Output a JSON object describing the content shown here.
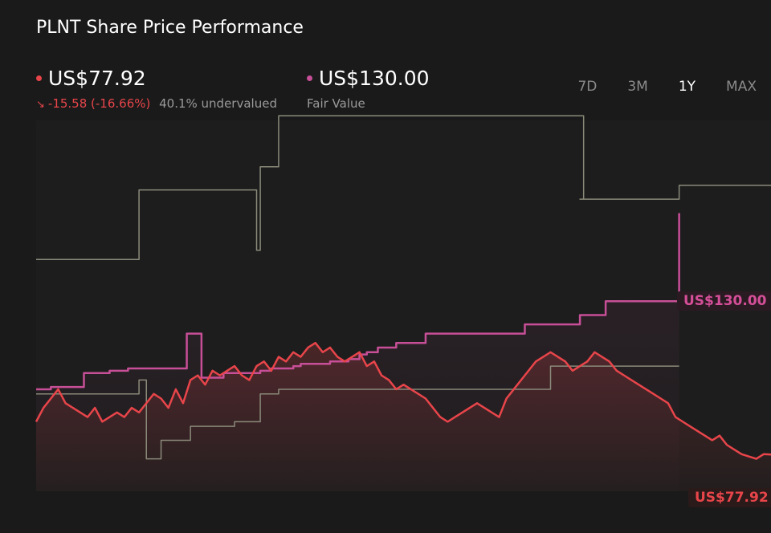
{
  "title": "PLNT Share Price Performance",
  "price": {
    "value": "US$77.92",
    "change": "-15.58 (-16.66%)",
    "valuation": "40.1% undervalued",
    "color": "#e8454a"
  },
  "fair_value": {
    "value": "US$130.00",
    "label": "Fair Value",
    "color": "#c74f97"
  },
  "ranges": [
    "7D",
    "3M",
    "1Y",
    "MAX"
  ],
  "active_range": "1Y",
  "end_labels": {
    "fair_value": "US$130.00",
    "price": "US$77.92"
  },
  "chart_data": {
    "type": "line",
    "xlim": [
      0,
      200
    ],
    "ylim": [
      70,
      150
    ],
    "series": [
      {
        "name": "Fair Value",
        "color": "#c74f97",
        "step": true,
        "x": [
          0,
          4,
          12,
          13,
          17,
          20,
          25,
          40,
          41,
          44,
          45,
          49,
          51,
          61,
          64,
          70,
          72,
          80,
          85,
          88,
          90,
          93,
          98,
          106,
          116,
          133,
          138,
          148,
          150,
          155,
          165,
          175
        ],
        "y": [
          92,
          92.5,
          92.5,
          95.5,
          95.5,
          96,
          96.5,
          96.5,
          104,
          104,
          94.5,
          94.5,
          95.5,
          96,
          96.5,
          97,
          97.5,
          98,
          98.5,
          99.5,
          100,
          101,
          102,
          104,
          104,
          106,
          106,
          108,
          108,
          111,
          111,
          130
        ]
      },
      {
        "name": "Price",
        "color": "#e8454a",
        "x": [
          0,
          2,
          4,
          6,
          8,
          10,
          12,
          14,
          16,
          18,
          20,
          22,
          24,
          26,
          28,
          30,
          32,
          34,
          36,
          38,
          40,
          42,
          44,
          46,
          48,
          50,
          52,
          54,
          56,
          58,
          60,
          62,
          64,
          66,
          68,
          70,
          72,
          74,
          76,
          78,
          80,
          82,
          84,
          86,
          88,
          90,
          92,
          94,
          96,
          98,
          100,
          102,
          104,
          106,
          108,
          110,
          112,
          114,
          116,
          118,
          120,
          122,
          124,
          126,
          128,
          130,
          132,
          134,
          136,
          138,
          140,
          142,
          144,
          146,
          148,
          150,
          152,
          154,
          156,
          158,
          160,
          162,
          164,
          166,
          168,
          170,
          172,
          174,
          176,
          178,
          180,
          182,
          184,
          186,
          188,
          190,
          192,
          194,
          196,
          198,
          200
        ],
        "y": [
          85,
          88,
          90,
          92,
          89,
          88,
          87,
          86,
          88,
          85,
          86,
          87,
          86,
          88,
          87,
          89,
          91,
          90,
          88,
          92,
          89,
          94,
          95,
          93,
          96,
          95,
          96,
          97,
          95,
          94,
          97,
          98,
          96,
          99,
          98,
          100,
          99,
          101,
          102,
          100,
          101,
          99,
          98,
          99,
          100,
          97,
          98,
          95,
          94,
          92,
          93,
          92,
          91,
          90,
          88,
          86,
          85,
          86,
          87,
          88,
          89,
          88,
          87,
          86,
          90,
          92,
          94,
          96,
          98,
          99,
          100,
          99,
          98,
          96,
          97,
          98,
          100,
          99,
          98,
          96,
          95,
          94,
          93,
          92,
          91,
          90,
          89,
          86,
          85,
          84,
          83,
          82,
          81,
          82,
          80,
          79,
          78,
          77.5,
          77,
          78,
          77.92
        ]
      },
      {
        "name": "Grey upper",
        "color": "#8a8a7a",
        "step": true,
        "x": [
          0,
          20,
          28,
          30,
          60,
          61,
          66,
          131,
          149,
          148,
          175,
          200
        ],
        "y": [
          120,
          120,
          135,
          135,
          122,
          140,
          151,
          151,
          133,
          133,
          136,
          136
        ]
      },
      {
        "name": "Grey lower",
        "color": "#8a8a7a",
        "step": true,
        "x": [
          0,
          27,
          28,
          30,
          34,
          42,
          48,
          54,
          61,
          66,
          140,
          151,
          175
        ],
        "y": [
          91,
          91,
          94,
          77,
          81,
          84,
          84,
          85,
          91,
          92,
          97,
          97,
          97
        ]
      }
    ]
  }
}
